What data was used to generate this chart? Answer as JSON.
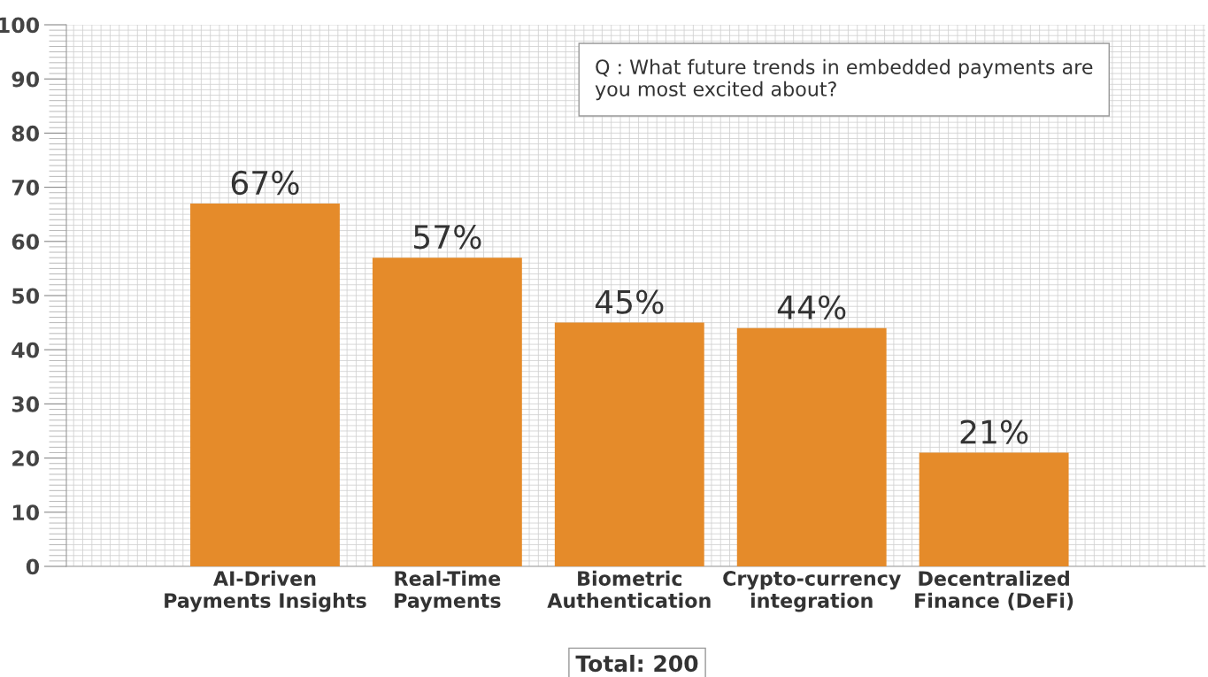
{
  "chart_data": {
    "type": "bar",
    "categories": [
      "AI-Driven\nPayments Insights",
      "Real-Time\nPayments",
      "Biometric\nAuthentication",
      "Crypto-currency\nintegration",
      "Decentralized\nFinance (DeFi)"
    ],
    "values": [
      67,
      57,
      45,
      44,
      21
    ],
    "value_labels": [
      "67%",
      "57%",
      "45%",
      "44%",
      "21%"
    ],
    "color": "#e58b2a",
    "ylim": [
      0,
      100
    ],
    "yticks": [
      0,
      10,
      20,
      30,
      40,
      50,
      60,
      70,
      80,
      90,
      100
    ],
    "grid": true,
    "legend": false,
    "annotations": [
      "Q : What future trends in embedded payments are\nyou most excited about?",
      "Total: 200"
    ]
  }
}
